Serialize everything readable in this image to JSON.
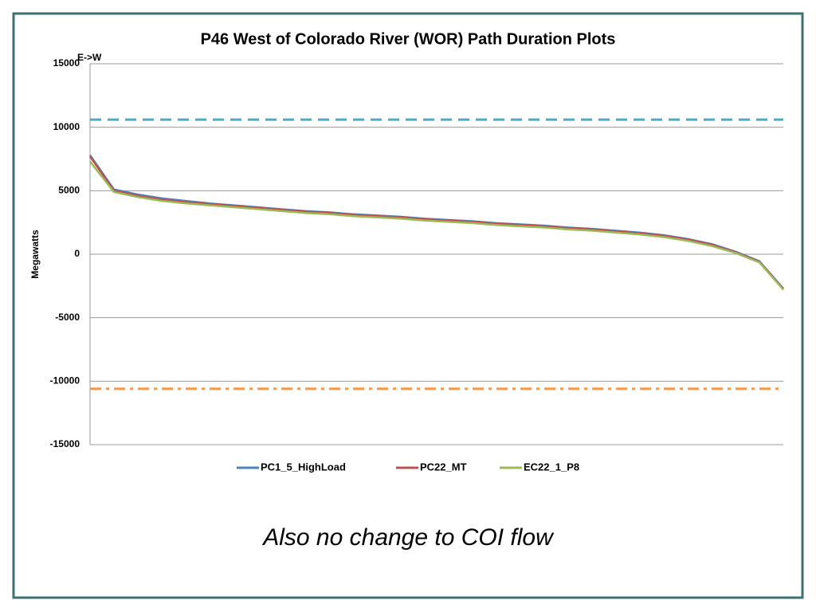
{
  "chart_data": {
    "type": "line",
    "title": "P46 West of Colorado River (WOR) Path Duration Plots",
    "y_label": "Megawatts",
    "annotation": "E->W",
    "categories": [
      null,
      null,
      null,
      null,
      null,
      null,
      null,
      null,
      null,
      null,
      null,
      null,
      null,
      null,
      null,
      null,
      null,
      null,
      null,
      null,
      null,
      null,
      null,
      null,
      null,
      null,
      null,
      null,
      null,
      null
    ],
    "series": [
      {
        "name": "PC1_5_HighLoad",
        "color": "#4f81bd",
        "values": [
          7800,
          5100,
          4700,
          4400,
          4200,
          4000,
          3850,
          3700,
          3550,
          3400,
          3300,
          3150,
          3050,
          2950,
          2800,
          2700,
          2600,
          2450,
          2350,
          2250,
          2100,
          2000,
          1850,
          1700,
          1500,
          1200,
          800,
          200,
          -550,
          -2700
        ]
      },
      {
        "name": "PC22_MT",
        "color": "#c0504d",
        "values": [
          7700,
          5000,
          4600,
          4300,
          4100,
          3950,
          3800,
          3650,
          3500,
          3350,
          3250,
          3100,
          3000,
          2900,
          2750,
          2650,
          2550,
          2400,
          2300,
          2200,
          2050,
          1950,
          1800,
          1650,
          1450,
          1150,
          750,
          150,
          -600,
          -2750
        ]
      },
      {
        "name": "EC22_1_P8",
        "color": "#9bbb59",
        "values": [
          7300,
          4900,
          4500,
          4200,
          4000,
          3850,
          3700,
          3550,
          3400,
          3250,
          3150,
          3000,
          2900,
          2800,
          2650,
          2550,
          2450,
          2300,
          2200,
          2100,
          1950,
          1850,
          1700,
          1550,
          1350,
          1050,
          650,
          100,
          -650,
          -2800
        ]
      }
    ],
    "reference_lines": [
      {
        "value": 10600,
        "color": "#4bacc6",
        "style": "dashed"
      },
      {
        "value": -10600,
        "color": "#f79646",
        "style": "dashdot"
      }
    ],
    "ylim": [
      -15000,
      15000
    ],
    "yticks": [
      -15000,
      -10000,
      -5000,
      0,
      5000,
      10000,
      15000
    ],
    "grid": true,
    "legend": "bottom"
  },
  "caption": "Also no change to COI flow"
}
